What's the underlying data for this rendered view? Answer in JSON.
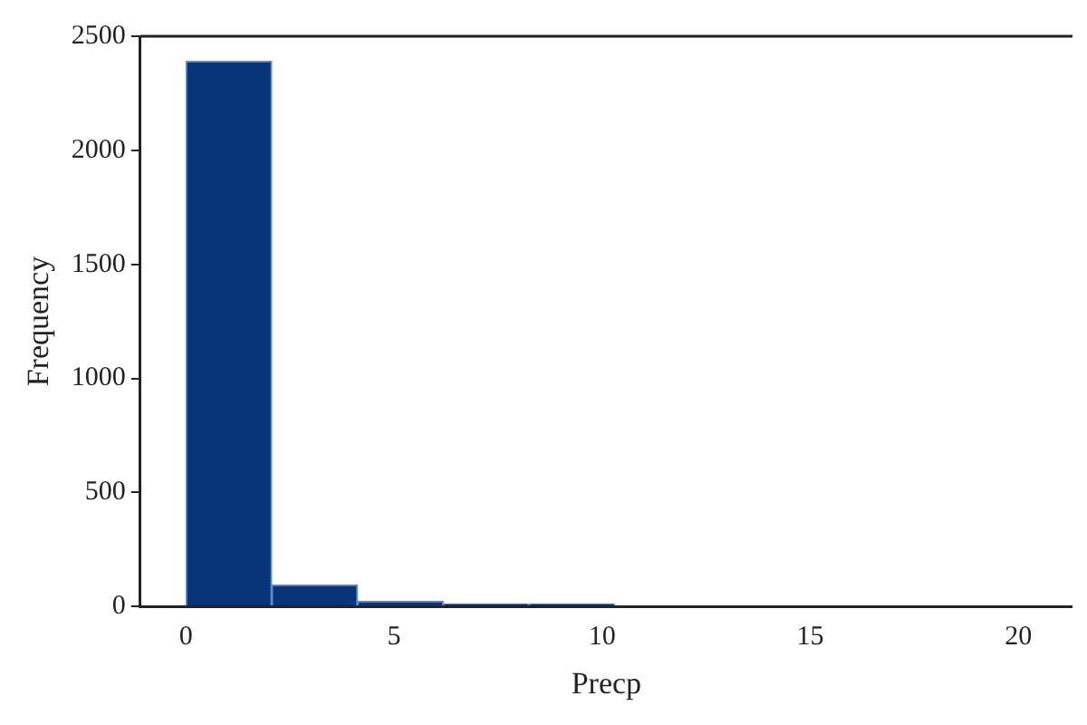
{
  "chart_data": {
    "type": "histogram",
    "xlabel": "Precp",
    "ylabel": "Frequency",
    "bins": [
      0,
      2.06,
      4.12,
      6.18,
      8.24,
      10.3,
      12.36,
      14.42,
      16.48,
      18.54,
      20.6
    ],
    "values": [
      2390,
      95,
      23,
      10,
      10,
      0,
      0,
      0,
      0,
      0
    ],
    "color": "#08357a",
    "xlim": [
      -1.1,
      21.3
    ],
    "xticks": [
      0,
      5,
      10,
      15,
      20
    ],
    "ylim": [
      0,
      2500
    ],
    "yticks": [
      0,
      500,
      1000,
      1500,
      2000,
      2500
    ],
    "grid": false,
    "legend": false
  }
}
